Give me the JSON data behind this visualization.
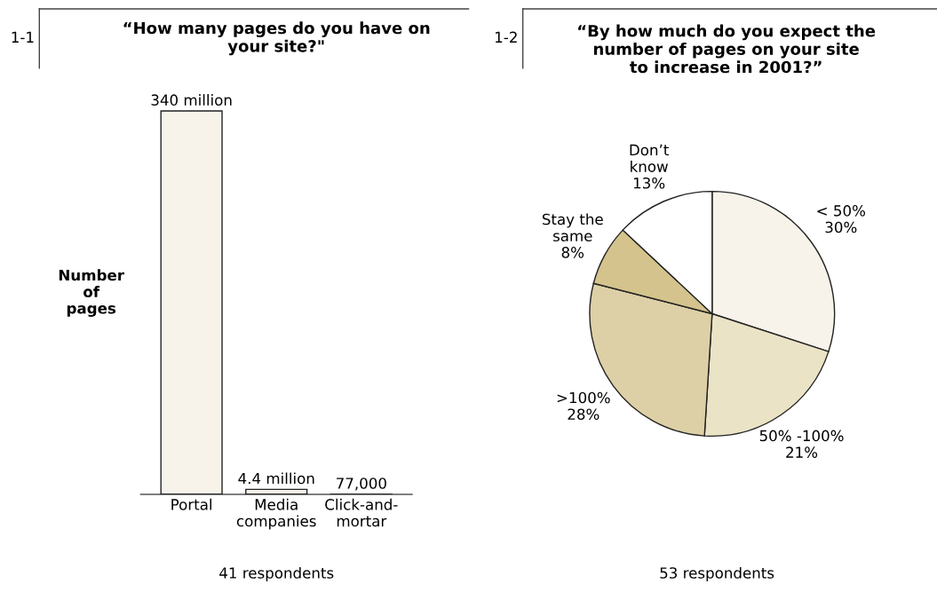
{
  "chart_data": [
    {
      "type": "bar",
      "title": "“How many pages do you have on\nyour site?\"",
      "ylabel": "Number\nof\npages",
      "relative": false,
      "categories": [
        "Portal",
        "Media\ncompanies",
        "Click-and-\nmortar"
      ],
      "values": [
        340000000,
        4400000,
        77000
      ],
      "color": "#f7f3ea",
      "value_labels": [
        "340 million",
        "4.4 million",
        "77,000"
      ],
      "annotations": [
        "1-1",
        "41 respondents"
      ],
      "grid": false,
      "legend": false
    },
    {
      "type": "pie",
      "title": "“By how much do you expect the\nnumber of pages on your site\nto increase in 2001?”",
      "categories": [
        "< 50%",
        "50% -100%",
        ">100%",
        "Stay the\nsame",
        "Don’t\nknow"
      ],
      "values": [
        30,
        21,
        28,
        8,
        13
      ],
      "colors": [
        "#f7f3ea",
        "#ebe3c6",
        "#ddd0a6",
        "#d4c38c",
        "#ffffff"
      ],
      "value_labels": [
        "30%",
        "21%",
        "28%",
        "8%",
        "13%"
      ],
      "annotations": [
        "1-2",
        "53 respondents"
      ],
      "legend": false
    }
  ]
}
